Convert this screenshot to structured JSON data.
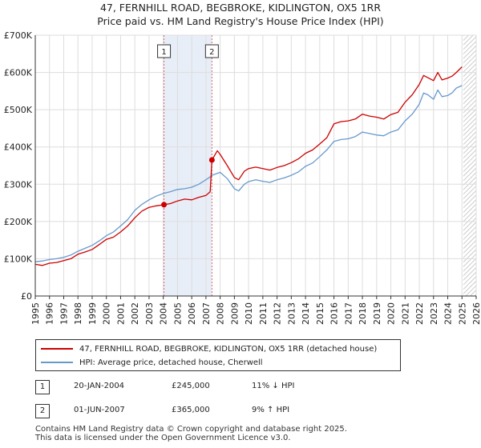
{
  "title_line1": "47, FERNHILL ROAD, BEGBROKE, KIDLINGTON, OX5 1RR",
  "title_line2": "Price paid vs. HM Land Registry's House Price Index (HPI)",
  "chart_data": {
    "type": "line",
    "xlim": [
      1995,
      2026
    ],
    "ylim": [
      0,
      700000
    ],
    "y_ticks": [
      0,
      100000,
      200000,
      300000,
      400000,
      500000,
      600000,
      700000
    ],
    "y_tick_labels": [
      "£0",
      "£100K",
      "£200K",
      "£300K",
      "£400K",
      "£500K",
      "£600K",
      "£700K"
    ],
    "x_tick_labels": [
      "1995",
      "1996",
      "1997",
      "1998",
      "1999",
      "2000",
      "2001",
      "2002",
      "2003",
      "2004",
      "2005",
      "2006",
      "2007",
      "2008",
      "2009",
      "2010",
      "2011",
      "2012",
      "2013",
      "2014",
      "2015",
      "2016",
      "2017",
      "2018",
      "2019",
      "2020",
      "2021",
      "2022",
      "2023",
      "2024",
      "2025",
      "2026"
    ],
    "grid": true,
    "highlight_band": [
      2004.05,
      2007.42
    ],
    "future_hatch_from": 2025.1,
    "series": [
      {
        "name": "47, FERNHILL ROAD, BEGBROKE, KIDLINGTON, OX5 1RR (detached house)",
        "color": "#cc0000",
        "x": [
          1995.0,
          1995.5,
          1996.0,
          1996.5,
          1997.0,
          1997.5,
          1998.0,
          1998.5,
          1999.0,
          1999.5,
          2000.0,
          2000.5,
          2001.0,
          2001.5,
          2002.0,
          2002.5,
          2003.0,
          2003.5,
          2004.05,
          2004.5,
          2005.0,
          2005.5,
          2006.0,
          2006.5,
          2007.0,
          2007.3,
          2007.42,
          2007.8,
          2008.0,
          2008.5,
          2009.0,
          2009.3,
          2009.7,
          2010.0,
          2010.5,
          2011.0,
          2011.5,
          2012.0,
          2012.5,
          2013.0,
          2013.5,
          2014.0,
          2014.5,
          2015.0,
          2015.5,
          2016.0,
          2016.5,
          2017.0,
          2017.5,
          2018.0,
          2018.5,
          2019.0,
          2019.5,
          2020.0,
          2020.5,
          2021.0,
          2021.5,
          2022.0,
          2022.3,
          2022.6,
          2023.0,
          2023.3,
          2023.6,
          2024.0,
          2024.3,
          2024.6,
          2025.0
        ],
        "y": [
          85000,
          82000,
          88000,
          90000,
          95000,
          100000,
          112000,
          118000,
          125000,
          138000,
          152000,
          158000,
          172000,
          188000,
          210000,
          228000,
          238000,
          242000,
          245000,
          248000,
          255000,
          260000,
          258000,
          265000,
          270000,
          280000,
          365000,
          390000,
          380000,
          350000,
          318000,
          312000,
          335000,
          342000,
          346000,
          342000,
          338000,
          345000,
          350000,
          358000,
          368000,
          383000,
          392000,
          408000,
          425000,
          462000,
          468000,
          470000,
          475000,
          488000,
          483000,
          480000,
          475000,
          487000,
          493000,
          520000,
          540000,
          568000,
          592000,
          586000,
          578000,
          600000,
          580000,
          585000,
          590000,
          600000,
          615000
        ]
      },
      {
        "name": "HPI: Average price, detached house, Cherwell",
        "color": "#6699cc",
        "x": [
          1995.0,
          1995.5,
          1996.0,
          1996.5,
          1997.0,
          1997.5,
          1998.0,
          1998.5,
          1999.0,
          1999.5,
          2000.0,
          2000.5,
          2001.0,
          2001.5,
          2002.0,
          2002.5,
          2003.0,
          2003.5,
          2004.0,
          2004.5,
          2005.0,
          2005.5,
          2006.0,
          2006.5,
          2007.0,
          2007.5,
          2008.0,
          2008.5,
          2009.0,
          2009.3,
          2009.7,
          2010.0,
          2010.5,
          2011.0,
          2011.5,
          2012.0,
          2012.5,
          2013.0,
          2013.5,
          2014.0,
          2014.5,
          2015.0,
          2015.5,
          2016.0,
          2016.5,
          2017.0,
          2017.5,
          2018.0,
          2018.5,
          2019.0,
          2019.5,
          2020.0,
          2020.5,
          2021.0,
          2021.5,
          2022.0,
          2022.3,
          2022.6,
          2023.0,
          2023.3,
          2023.6,
          2024.0,
          2024.3,
          2024.6,
          2025.0
        ],
        "y": [
          92000,
          94000,
          98000,
          100000,
          104000,
          110000,
          120000,
          128000,
          136000,
          148000,
          162000,
          172000,
          188000,
          205000,
          230000,
          246000,
          258000,
          268000,
          275000,
          280000,
          286000,
          288000,
          292000,
          300000,
          312000,
          325000,
          332000,
          315000,
          288000,
          282000,
          300000,
          307000,
          312000,
          308000,
          305000,
          312000,
          317000,
          324000,
          333000,
          348000,
          357000,
          374000,
          392000,
          415000,
          420000,
          422000,
          428000,
          440000,
          436000,
          432000,
          430000,
          440000,
          446000,
          470000,
          488000,
          515000,
          545000,
          540000,
          528000,
          553000,
          535000,
          538000,
          545000,
          558000,
          565000
        ]
      }
    ],
    "transactions": [
      {
        "label": "1",
        "x": 2004.05,
        "y": 245000,
        "date": "20-JAN-2004",
        "price": "£245,000",
        "hpi": "11% ↓ HPI"
      },
      {
        "label": "2",
        "x": 2007.42,
        "y": 365000,
        "date": "01-JUN-2007",
        "price": "£365,000",
        "hpi": "9% ↑ HPI"
      }
    ]
  },
  "legend": {
    "property": "47, FERNHILL ROAD, BEGBROKE, KIDLINGTON, OX5 1RR (detached house)",
    "hpi": "HPI: Average price, detached house, Cherwell"
  },
  "footer_line1": "Contains HM Land Registry data © Crown copyright and database right 2025.",
  "footer_line2": "This data is licensed under the Open Government Licence v3.0."
}
